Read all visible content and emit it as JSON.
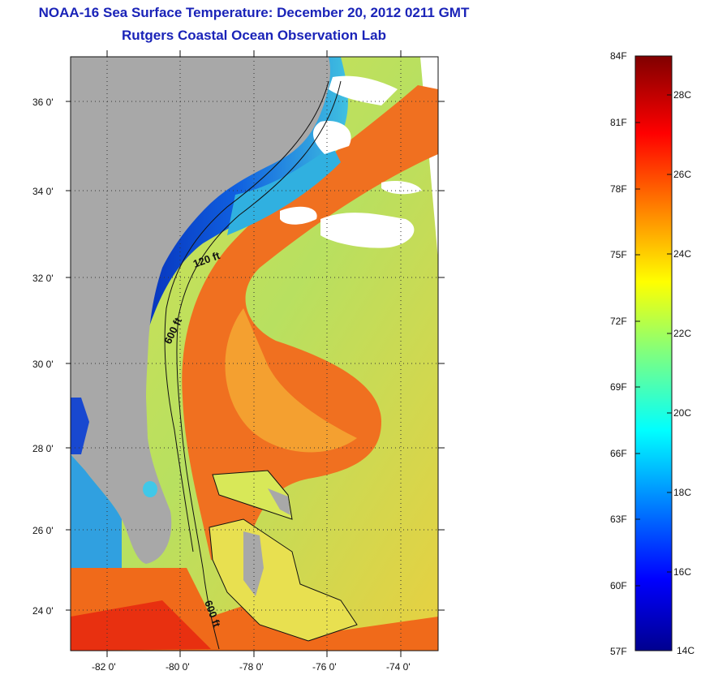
{
  "header": {
    "title": "NOAA-16 Sea Surface Temperature:  December 20, 2012 0211 GMT",
    "subtitle": "Rutgers Coastal Ocean Observation Lab"
  },
  "map": {
    "lat_labels": [
      "36 0'",
      "34 0'",
      "32 0'",
      "30 0'",
      "28 0'",
      "26 0'",
      "24 0'"
    ],
    "lon_labels": [
      "-82 0'",
      "-80 0'",
      "-78 0'",
      "-76 0'",
      "-74 0'"
    ],
    "contour_labels": [
      "120 ft",
      "600 ft",
      "600 ft"
    ],
    "colors": {
      "land": "#a8a8a8",
      "cloud": "#ffffff",
      "gulf_stream": "#f07020",
      "offshore": "#b8e060",
      "shelf": "#1030d0"
    }
  },
  "colorbar": {
    "f_labels": [
      "84F",
      "81F",
      "78F",
      "75F",
      "72F",
      "69F",
      "66F",
      "63F",
      "60F",
      "57F"
    ],
    "c_labels": [
      "28C",
      "26C",
      "24C",
      "22C",
      "20C",
      "18C",
      "16C",
      "14C"
    ],
    "range_f": [
      57,
      84
    ],
    "range_c": [
      14,
      29
    ]
  }
}
